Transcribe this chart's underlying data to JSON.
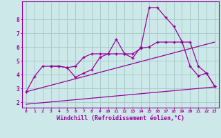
{
  "background_color": "#cce8e8",
  "grid_color": "#aacccc",
  "line_color": "#990099",
  "xlabel": "Windchill (Refroidissement éolien,°C)",
  "ylabel_ticks": [
    2,
    3,
    4,
    5,
    6,
    7,
    8
  ],
  "xlim": [
    -0.5,
    23.5
  ],
  "ylim": [
    1.6,
    9.3
  ],
  "xtick_labels": [
    "0",
    "1",
    "2",
    "3",
    "4",
    "5",
    "6",
    "7",
    "8",
    "9",
    "10",
    "11",
    "12",
    "13",
    "14",
    "15",
    "16",
    "17",
    "18",
    "19",
    "20",
    "21",
    "22",
    "23"
  ],
  "line1_x": [
    0,
    1,
    2,
    3,
    4,
    5,
    6,
    7,
    8,
    9,
    10,
    11,
    12,
    13,
    14,
    15,
    16,
    17,
    18,
    19,
    20,
    21,
    22,
    23
  ],
  "line1_y": [
    2.75,
    3.85,
    4.6,
    4.6,
    4.6,
    4.5,
    3.8,
    4.1,
    4.35,
    5.25,
    5.5,
    6.55,
    5.5,
    5.2,
    6.0,
    8.85,
    8.85,
    8.15,
    7.5,
    6.4,
    4.6,
    3.9,
    4.1,
    3.15
  ],
  "line2_x": [
    3,
    4,
    5,
    6,
    7,
    8,
    9,
    10,
    11,
    12,
    13,
    14,
    15,
    16,
    17,
    18,
    19,
    20,
    21,
    22,
    23
  ],
  "line2_y": [
    4.6,
    4.6,
    4.5,
    4.6,
    5.25,
    5.5,
    5.5,
    5.5,
    5.5,
    5.5,
    5.5,
    5.9,
    6.0,
    6.35,
    6.35,
    6.35,
    6.35,
    6.35,
    4.6,
    4.1,
    3.15
  ],
  "line3_x": [
    0,
    23
  ],
  "line3_y": [
    1.85,
    3.1
  ],
  "line4_x": [
    0,
    23
  ],
  "line4_y": [
    2.75,
    6.35
  ]
}
